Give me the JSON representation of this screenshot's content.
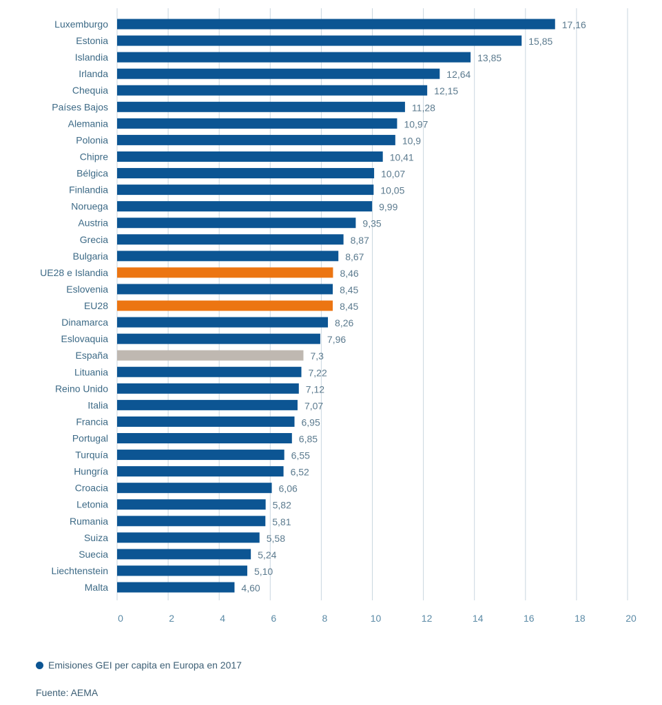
{
  "chart_data": {
    "type": "bar",
    "orientation": "horizontal",
    "title": "",
    "xlabel": "",
    "ylabel": "",
    "xlim": [
      0,
      20
    ],
    "x_ticks": [
      "0",
      "2",
      "4",
      "6",
      "8",
      "10",
      "12",
      "14",
      "16",
      "18",
      "20"
    ],
    "x_tick_values": [
      0,
      2,
      4,
      6,
      8,
      10,
      12,
      14,
      16,
      18,
      20
    ],
    "grid": "vertical",
    "categories": [
      "Luxemburgo",
      "Estonia",
      "Islandia",
      "Irlanda",
      "Chequia",
      "Países Bajos",
      "Alemania",
      "Polonia",
      "Chipre",
      "Bélgica",
      "Finlandia",
      "Noruega",
      "Austria",
      "Grecia",
      "Bulgaria",
      "UE28 e Islandia",
      "Eslovenia",
      "EU28",
      "Dinamarca",
      "Eslovaquia",
      "España",
      "Lituania",
      "Reino Unido",
      "Italia",
      "Francia",
      "Portugal",
      "Turquía",
      "Hungría",
      "Croacia",
      "Letonia",
      "Rumania",
      "Suiza",
      "Suecia",
      "Liechtenstein",
      "Malta"
    ],
    "values": [
      17.16,
      15.85,
      13.85,
      12.64,
      12.15,
      11.28,
      10.97,
      10.9,
      10.41,
      10.07,
      10.05,
      9.99,
      9.35,
      8.87,
      8.67,
      8.46,
      8.45,
      8.45,
      8.26,
      7.96,
      7.3,
      7.22,
      7.12,
      7.07,
      6.95,
      6.85,
      6.55,
      6.52,
      6.06,
      5.82,
      5.81,
      5.58,
      5.24,
      5.1,
      4.6
    ],
    "value_labels": [
      "17,16",
      "15,85",
      "13,85",
      "12,64",
      "12,15",
      "11,28",
      "10,97",
      "10,9",
      "10,41",
      "10,07",
      "10,05",
      "9,99",
      "9,35",
      "8,87",
      "8,67",
      "8,46",
      "8,45",
      "8,45",
      "8,26",
      "7,96",
      "7,3",
      "7,22",
      "7,12",
      "7,07",
      "6,95",
      "6,85",
      "6,55",
      "6,52",
      "6,06",
      "5,82",
      "5,81",
      "5,58",
      "5,24",
      "5,10",
      "4,60"
    ],
    "highlights": {
      "UE28 e Islandia": "aggregate",
      "EU28": "aggregate",
      "España": "spain"
    },
    "colors": {
      "default": "#0c5593",
      "aggregate": "#ec7512",
      "spain": "#bfb8b1",
      "grid": "#c9d6df"
    },
    "legend": [
      {
        "label": "Emisiones GEI per capita en Europa en 2017",
        "color": "#0c5593"
      }
    ],
    "legend_position": "bottom-left"
  },
  "footer": {
    "legend_label": "Emisiones GEI per capita en Europa en 2017",
    "source": "Fuente: AEMA"
  }
}
